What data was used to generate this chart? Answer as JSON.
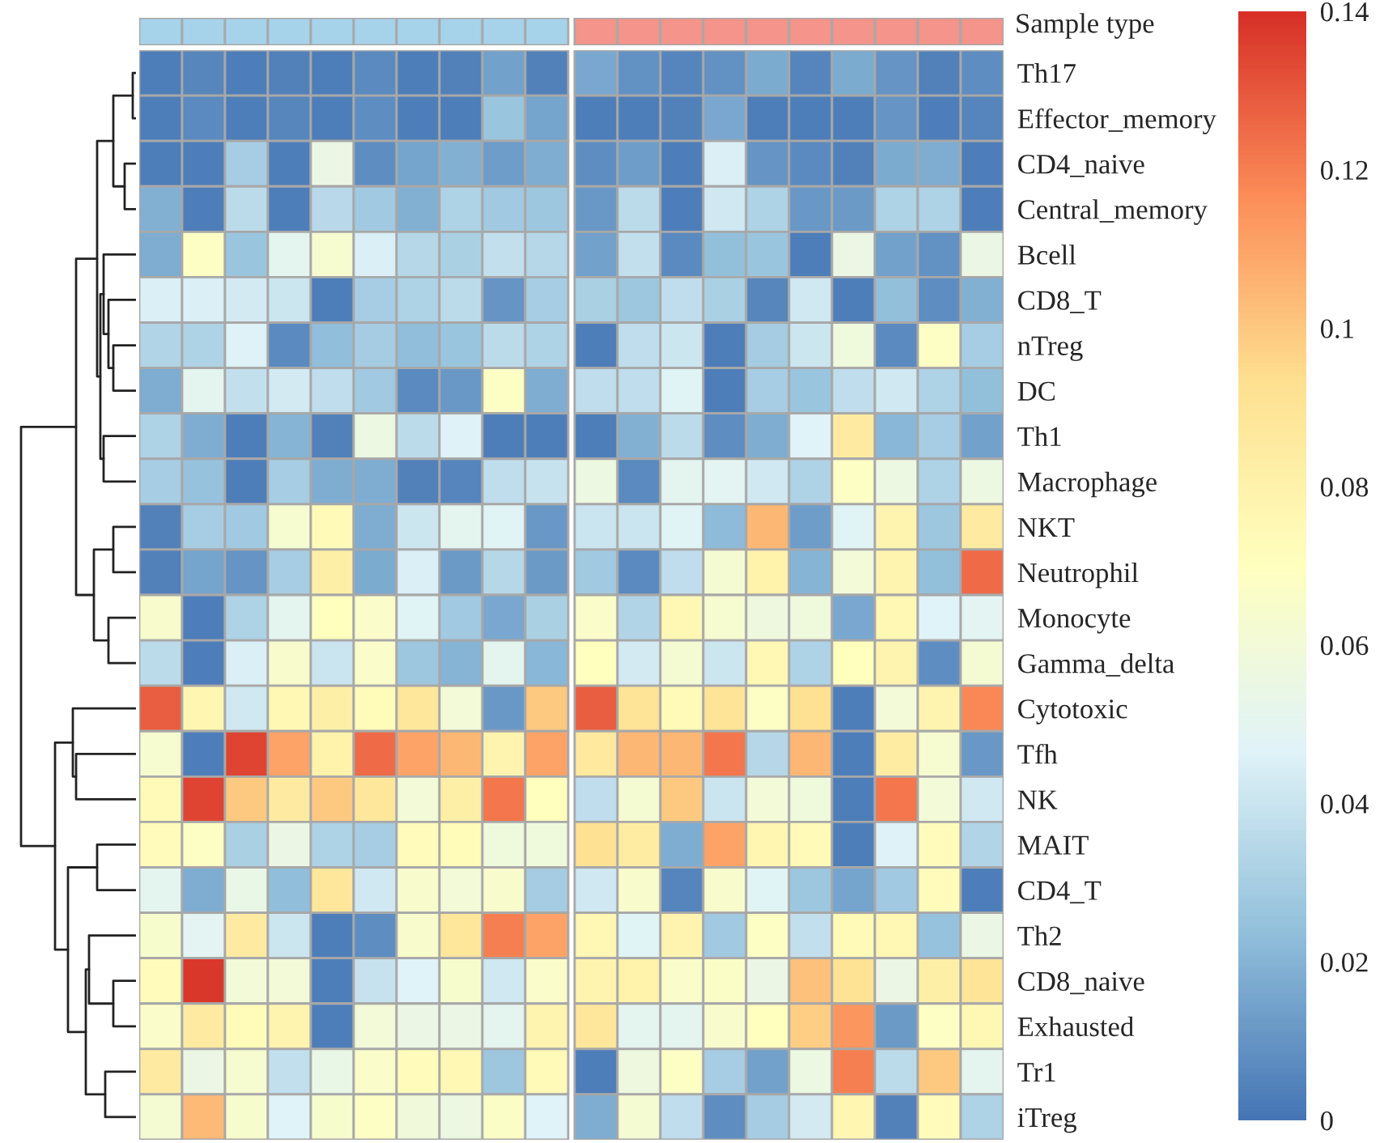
{
  "chart_data": {
    "type": "heatmap",
    "categories": [
      null,
      null,
      null,
      null,
      null,
      null,
      null,
      null,
      null,
      null,
      null,
      null,
      null,
      null,
      null,
      null,
      null,
      null,
      null,
      null
    ],
    "y_categories": [
      "Th17",
      "Effector_memory",
      "CD4_naive",
      "Central_memory",
      "Bcell",
      "CD8_T",
      "nTreg",
      "DC",
      "Th1",
      "Macrophage",
      "NKT",
      "Neutrophil",
      "Monocyte",
      "Gamma_delta",
      "Cytotoxic",
      "Tfh",
      "NK",
      "MAIT",
      "CD4_T",
      "Th2",
      "CD8_naive",
      "Exhausted",
      "Tr1",
      "iTreg"
    ],
    "tick_labels": "y",
    "clim": [
      0,
      0.14
    ],
    "cticks": [
      {
        "value": 0,
        "label": "0"
      },
      0.02,
      0.04,
      0.06,
      0.08,
      0.1,
      0.12,
      0.14
    ],
    "annotations": [
      "Sample type"
    ],
    "cells": [
      [
        0.003,
        0.006,
        0.003,
        0.004,
        0.003,
        0.007,
        0.003,
        0.004,
        0.014,
        0.004,
        0.016,
        0.009,
        0.005,
        0.009,
        0.017,
        0.005,
        0.017,
        0.01,
        0.004,
        0.008
      ],
      [
        0.003,
        0.007,
        0.003,
        0.006,
        0.003,
        0.008,
        0.003,
        0.003,
        0.026,
        0.015,
        0.003,
        0.003,
        0.004,
        0.016,
        0.003,
        0.003,
        0.003,
        0.01,
        0.003,
        0.005
      ],
      [
        0.003,
        0.003,
        0.03,
        0.003,
        0.055,
        0.008,
        0.015,
        0.019,
        0.013,
        0.018,
        0.008,
        0.013,
        0.003,
        0.045,
        0.01,
        0.007,
        0.004,
        0.017,
        0.018,
        0.003
      ],
      [
        0.019,
        0.003,
        0.036,
        0.003,
        0.035,
        0.028,
        0.019,
        0.032,
        0.028,
        0.027,
        0.011,
        0.036,
        0.003,
        0.042,
        0.032,
        0.011,
        0.012,
        0.032,
        0.032,
        0.003
      ],
      [
        0.018,
        0.068,
        0.026,
        0.05,
        0.063,
        0.045,
        0.034,
        0.031,
        0.038,
        0.034,
        0.014,
        0.038,
        0.007,
        0.024,
        0.026,
        0.003,
        0.055,
        0.014,
        0.009,
        0.055
      ],
      [
        0.045,
        0.045,
        0.043,
        0.041,
        0.003,
        0.03,
        0.032,
        0.036,
        0.01,
        0.03,
        0.031,
        0.027,
        0.037,
        0.031,
        0.006,
        0.042,
        0.003,
        0.024,
        0.008,
        0.019
      ],
      [
        0.033,
        0.032,
        0.046,
        0.007,
        0.023,
        0.029,
        0.023,
        0.026,
        0.036,
        0.032,
        0.003,
        0.037,
        0.041,
        0.003,
        0.029,
        0.041,
        0.058,
        0.007,
        0.068,
        0.03
      ],
      [
        0.018,
        0.05,
        0.038,
        0.043,
        0.037,
        0.028,
        0.007,
        0.011,
        0.068,
        0.018,
        0.037,
        0.037,
        0.048,
        0.003,
        0.03,
        0.026,
        0.037,
        0.042,
        0.032,
        0.024
      ],
      [
        0.032,
        0.018,
        0.003,
        0.02,
        0.004,
        0.056,
        0.036,
        0.046,
        0.003,
        0.003,
        0.003,
        0.019,
        0.036,
        0.008,
        0.018,
        0.047,
        0.085,
        0.021,
        0.03,
        0.014
      ],
      [
        0.03,
        0.025,
        0.003,
        0.03,
        0.018,
        0.018,
        0.004,
        0.005,
        0.037,
        0.039,
        0.056,
        0.007,
        0.05,
        0.049,
        0.042,
        0.032,
        0.068,
        0.056,
        0.032,
        0.056
      ],
      [
        0.004,
        0.03,
        0.028,
        0.063,
        0.074,
        0.018,
        0.041,
        0.05,
        0.048,
        0.011,
        0.04,
        0.04,
        0.048,
        0.022,
        0.105,
        0.013,
        0.048,
        0.078,
        0.027,
        0.085
      ],
      [
        0.004,
        0.015,
        0.01,
        0.03,
        0.082,
        0.017,
        0.045,
        0.012,
        0.034,
        0.012,
        0.028,
        0.007,
        0.037,
        0.062,
        0.08,
        0.02,
        0.06,
        0.078,
        0.024,
        0.125
      ],
      [
        0.065,
        0.003,
        0.032,
        0.05,
        0.07,
        0.066,
        0.048,
        0.028,
        0.016,
        0.031,
        0.066,
        0.033,
        0.075,
        0.063,
        0.057,
        0.058,
        0.016,
        0.075,
        0.047,
        0.049
      ],
      [
        0.036,
        0.003,
        0.045,
        0.065,
        0.04,
        0.066,
        0.027,
        0.02,
        0.05,
        0.021,
        0.07,
        0.043,
        0.062,
        0.041,
        0.075,
        0.032,
        0.07,
        0.078,
        0.008,
        0.062
      ],
      [
        0.128,
        0.077,
        0.042,
        0.075,
        0.082,
        0.073,
        0.088,
        0.06,
        0.011,
        0.1,
        0.128,
        0.09,
        0.074,
        0.09,
        0.068,
        0.092,
        0.003,
        0.06,
        0.078,
        0.118
      ],
      [
        0.063,
        0.003,
        0.135,
        0.11,
        0.08,
        0.125,
        0.11,
        0.105,
        0.078,
        0.11,
        0.086,
        0.105,
        0.105,
        0.122,
        0.034,
        0.105,
        0.003,
        0.084,
        0.063,
        0.011
      ],
      [
        0.074,
        0.135,
        0.1,
        0.085,
        0.1,
        0.088,
        0.06,
        0.082,
        0.122,
        0.07,
        0.037,
        0.062,
        0.1,
        0.04,
        0.06,
        0.058,
        0.003,
        0.122,
        0.06,
        0.042
      ],
      [
        0.072,
        0.068,
        0.031,
        0.055,
        0.032,
        0.03,
        0.072,
        0.073,
        0.058,
        0.058,
        0.092,
        0.084,
        0.018,
        0.11,
        0.077,
        0.074,
        0.003,
        0.046,
        0.072,
        0.033
      ],
      [
        0.05,
        0.018,
        0.054,
        0.023,
        0.088,
        0.042,
        0.065,
        0.06,
        0.065,
        0.029,
        0.042,
        0.065,
        0.005,
        0.065,
        0.048,
        0.027,
        0.015,
        0.028,
        0.072,
        0.003
      ],
      [
        0.064,
        0.049,
        0.085,
        0.041,
        0.003,
        0.008,
        0.065,
        0.088,
        0.12,
        0.11,
        0.076,
        0.048,
        0.078,
        0.028,
        0.068,
        0.038,
        0.074,
        0.076,
        0.025,
        0.055
      ],
      [
        0.072,
        0.138,
        0.06,
        0.06,
        0.003,
        0.039,
        0.047,
        0.064,
        0.042,
        0.066,
        0.078,
        0.08,
        0.066,
        0.067,
        0.055,
        0.102,
        0.091,
        0.055,
        0.082,
        0.09
      ],
      [
        0.066,
        0.085,
        0.073,
        0.078,
        0.003,
        0.06,
        0.055,
        0.055,
        0.05,
        0.078,
        0.088,
        0.05,
        0.05,
        0.065,
        0.07,
        0.098,
        0.114,
        0.012,
        0.068,
        0.075
      ],
      [
        0.085,
        0.055,
        0.063,
        0.038,
        0.054,
        0.066,
        0.072,
        0.075,
        0.027,
        0.074,
        0.003,
        0.057,
        0.068,
        0.03,
        0.014,
        0.056,
        0.12,
        0.036,
        0.1,
        0.05
      ],
      [
        0.062,
        0.104,
        0.064,
        0.047,
        0.064,
        0.068,
        0.059,
        0.056,
        0.067,
        0.047,
        0.018,
        0.062,
        0.037,
        0.008,
        0.029,
        0.043,
        0.077,
        0.004,
        0.072,
        0.032
      ]
    ]
  }
}
